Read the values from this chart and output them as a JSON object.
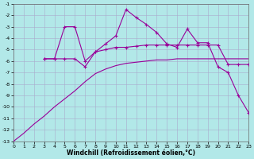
{
  "xlabel": "Windchill (Refroidissement éolien,°C)",
  "background_color": "#b2e8e8",
  "grid_color": "#aaaacc",
  "line_color": "#990099",
  "xlim": [
    0,
    23
  ],
  "ylim": [
    -13,
    -1
  ],
  "xticks": [
    0,
    1,
    2,
    3,
    4,
    5,
    6,
    7,
    8,
    9,
    10,
    11,
    12,
    13,
    14,
    15,
    16,
    17,
    18,
    19,
    20,
    21,
    22,
    23
  ],
  "yticks": [
    -1,
    -2,
    -3,
    -4,
    -5,
    -6,
    -7,
    -8,
    -9,
    -10,
    -11,
    -12,
    -13
  ],
  "series": [
    {
      "x": [
        0,
        1,
        2,
        3,
        4,
        5,
        6,
        7,
        8,
        9,
        10,
        11,
        12,
        13,
        14,
        15,
        16,
        17,
        18,
        19,
        20,
        21,
        22,
        23
      ],
      "y": [
        -13.0,
        -12.3,
        -11.5,
        -10.8,
        -10.0,
        -9.3,
        -8.6,
        -7.8,
        -7.1,
        -6.7,
        -6.4,
        -6.2,
        -6.1,
        -6.0,
        -5.9,
        -5.9,
        -5.8,
        -5.8,
        -5.8,
        -5.8,
        -5.8,
        -5.8,
        -5.8,
        -5.8
      ],
      "marker": false
    },
    {
      "x": [
        3,
        4,
        5,
        6,
        7,
        8,
        9,
        10,
        11,
        12,
        13,
        14,
        15,
        16,
        17,
        18,
        19,
        20,
        21,
        22,
        23
      ],
      "y": [
        -5.8,
        -5.8,
        -3.0,
        -3.0,
        -6.0,
        -5.2,
        -4.5,
        -3.8,
        -1.5,
        -2.2,
        -2.8,
        -3.5,
        -4.5,
        -4.8,
        -3.2,
        -4.4,
        -4.4,
        -6.5,
        -7.0,
        -9.0,
        -10.5
      ],
      "marker": true
    },
    {
      "x": [
        3,
        4,
        5,
        6,
        7,
        8,
        9,
        10,
        11,
        12,
        13,
        14,
        15,
        16,
        17,
        18,
        19,
        20,
        21,
        22,
        23
      ],
      "y": [
        -5.8,
        -5.8,
        -5.8,
        -5.8,
        -6.5,
        -5.2,
        -5.0,
        -4.8,
        -4.8,
        -4.7,
        -4.6,
        -4.6,
        -4.6,
        -4.6,
        -4.6,
        -4.6,
        -4.6,
        -4.6,
        -6.3,
        -6.3,
        -6.3
      ],
      "marker": true
    }
  ]
}
